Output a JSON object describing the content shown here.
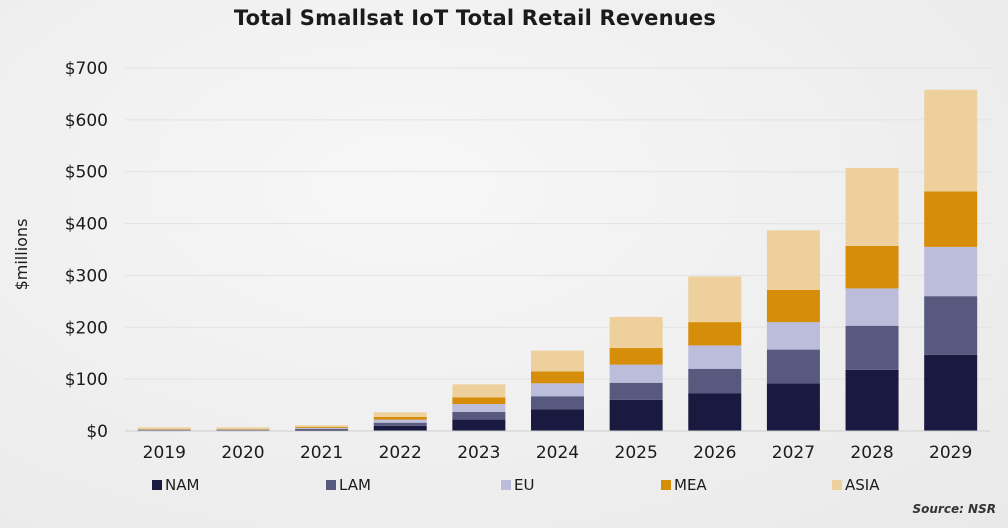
{
  "chart_data": {
    "type": "bar",
    "stacked": true,
    "title": "Total Smallsat IoT Total Retail Revenues",
    "ylabel": "$millions",
    "xlabel": "",
    "ylim": [
      0,
      700
    ],
    "yticks": [
      0,
      100,
      200,
      300,
      400,
      500,
      600,
      700
    ],
    "ytick_labels": [
      "$0",
      "$100",
      "$200",
      "$300",
      "$400",
      "$500",
      "$600",
      "$700"
    ],
    "categories": [
      "2019",
      "2020",
      "2021",
      "2022",
      "2023",
      "2024",
      "2025",
      "2026",
      "2027",
      "2028",
      "2029"
    ],
    "series": [
      {
        "name": "NAM",
        "color": "#1a1a40",
        "values": [
          1,
          1,
          2,
          10,
          22,
          42,
          60,
          73,
          92,
          118,
          147
        ]
      },
      {
        "name": "LAM",
        "color": "#58597f",
        "values": [
          1,
          1,
          2,
          6,
          15,
          25,
          33,
          47,
          65,
          85,
          113
        ]
      },
      {
        "name": "EU",
        "color": "#bcbcdb",
        "values": [
          1,
          1,
          2,
          6,
          15,
          25,
          35,
          45,
          53,
          72,
          95
        ]
      },
      {
        "name": "MEA",
        "color": "#d68e0a",
        "values": [
          1,
          1,
          2,
          5,
          13,
          23,
          32,
          45,
          62,
          82,
          107
        ]
      },
      {
        "name": "ASIA",
        "color": "#edd09b",
        "values": [
          3,
          3,
          3,
          9,
          25,
          40,
          60,
          88,
          115,
          150,
          196
        ]
      }
    ],
    "grid": true,
    "legend_position": "bottom",
    "source": "Source: NSR"
  }
}
